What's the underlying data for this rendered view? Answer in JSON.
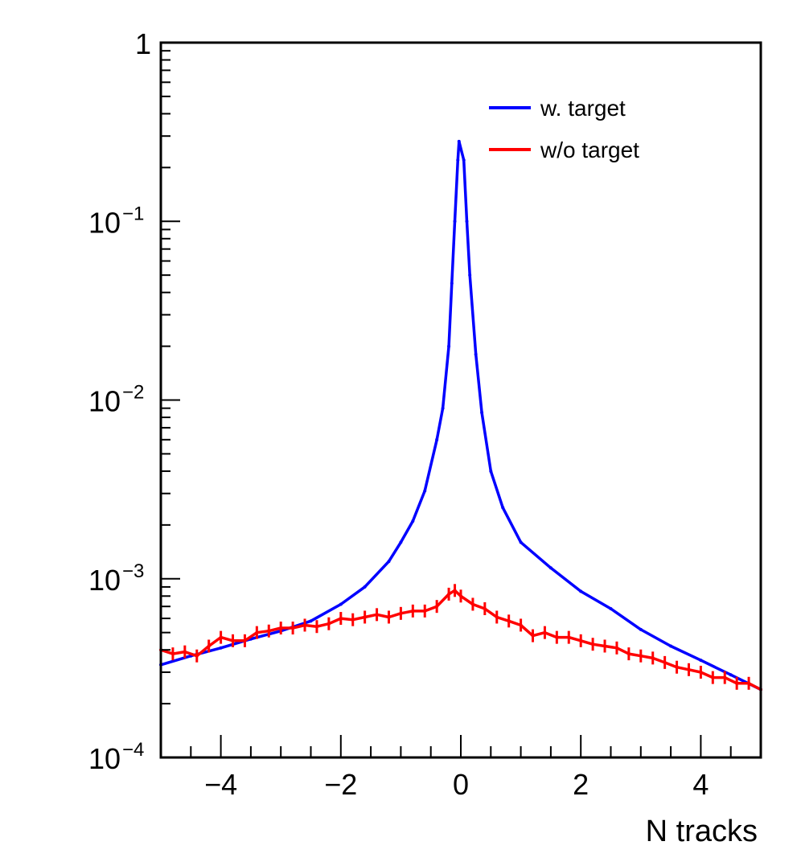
{
  "chart_data": {
    "type": "line",
    "title": "",
    "xlabel": "N tracks",
    "ylabel": "",
    "xlim": [
      -5,
      5
    ],
    "ylim": [
      0.0001,
      1
    ],
    "y_scale": "log",
    "x_ticks": [
      {
        "value": -4,
        "label": "−4"
      },
      {
        "value": -2,
        "label": "−2"
      },
      {
        "value": 0,
        "label": "0"
      },
      {
        "value": 2,
        "label": "2"
      },
      {
        "value": 4,
        "label": "4"
      }
    ],
    "y_ticks": [
      {
        "value": 1,
        "base": "1",
        "exp": ""
      },
      {
        "value": 0.1,
        "base": "10",
        "exp": "−1"
      },
      {
        "value": 0.01,
        "base": "10",
        "exp": "−2"
      },
      {
        "value": 0.001,
        "base": "10",
        "exp": "−3"
      },
      {
        "value": 0.0001,
        "base": "10",
        "exp": "−4"
      }
    ],
    "grid": false,
    "legend": {
      "position": "top-right",
      "entries": [
        "w. target",
        "w/o target"
      ]
    },
    "series": [
      {
        "name": "w. target",
        "color": "#0000ff",
        "points": [
          [
            -5.0,
            0.00033
          ],
          [
            -4.5,
            0.00037
          ],
          [
            -4.0,
            0.00041
          ],
          [
            -3.5,
            0.00046
          ],
          [
            -3.0,
            0.00051
          ],
          [
            -2.5,
            0.00058
          ],
          [
            -2.0,
            0.00072
          ],
          [
            -1.6,
            0.0009
          ],
          [
            -1.2,
            0.00125
          ],
          [
            -1.0,
            0.0016
          ],
          [
            -0.8,
            0.0021
          ],
          [
            -0.6,
            0.0031
          ],
          [
            -0.4,
            0.006
          ],
          [
            -0.3,
            0.009
          ],
          [
            -0.2,
            0.02
          ],
          [
            -0.15,
            0.045
          ],
          [
            -0.1,
            0.1
          ],
          [
            -0.05,
            0.22
          ],
          [
            -0.03,
            0.28
          ],
          [
            0.05,
            0.22
          ],
          [
            0.1,
            0.1
          ],
          [
            0.15,
            0.05
          ],
          [
            0.25,
            0.018
          ],
          [
            0.35,
            0.0085
          ],
          [
            0.5,
            0.004
          ],
          [
            0.7,
            0.0025
          ],
          [
            1.0,
            0.0016
          ],
          [
            1.5,
            0.00115
          ],
          [
            2.0,
            0.00085
          ],
          [
            2.5,
            0.00068
          ],
          [
            3.0,
            0.00052
          ],
          [
            3.5,
            0.00042
          ],
          [
            4.0,
            0.00035
          ],
          [
            4.5,
            0.00029
          ],
          [
            5.0,
            0.00024
          ]
        ]
      },
      {
        "name": "w/o target",
        "color": "#ff0000",
        "points": [
          [
            -5.0,
            0.0004
          ],
          [
            -4.8,
            0.00038
          ],
          [
            -4.6,
            0.00039
          ],
          [
            -4.4,
            0.00037
          ],
          [
            -4.2,
            0.00042
          ],
          [
            -4.0,
            0.00047
          ],
          [
            -3.8,
            0.00045
          ],
          [
            -3.6,
            0.00045
          ],
          [
            -3.4,
            0.0005
          ],
          [
            -3.2,
            0.00051
          ],
          [
            -3.0,
            0.00053
          ],
          [
            -2.8,
            0.00053
          ],
          [
            -2.6,
            0.00055
          ],
          [
            -2.4,
            0.00054
          ],
          [
            -2.2,
            0.00056
          ],
          [
            -2.0,
            0.0006
          ],
          [
            -1.8,
            0.00059
          ],
          [
            -1.6,
            0.00061
          ],
          [
            -1.4,
            0.00063
          ],
          [
            -1.2,
            0.00061
          ],
          [
            -1.0,
            0.00064
          ],
          [
            -0.8,
            0.00066
          ],
          [
            -0.6,
            0.00066
          ],
          [
            -0.4,
            0.0007
          ],
          [
            -0.2,
            0.00082
          ],
          [
            -0.1,
            0.00086
          ],
          [
            0.0,
            0.0008
          ],
          [
            0.2,
            0.00072
          ],
          [
            0.4,
            0.00068
          ],
          [
            0.6,
            0.00061
          ],
          [
            0.8,
            0.00058
          ],
          [
            1.0,
            0.00055
          ],
          [
            1.2,
            0.00048
          ],
          [
            1.4,
            0.0005
          ],
          [
            1.6,
            0.00047
          ],
          [
            1.8,
            0.00047
          ],
          [
            2.0,
            0.00045
          ],
          [
            2.2,
            0.00043
          ],
          [
            2.4,
            0.00042
          ],
          [
            2.6,
            0.00041
          ],
          [
            2.8,
            0.00038
          ],
          [
            3.0,
            0.00037
          ],
          [
            3.2,
            0.00036
          ],
          [
            3.4,
            0.00034
          ],
          [
            3.6,
            0.00032
          ],
          [
            3.8,
            0.00031
          ],
          [
            4.0,
            0.0003
          ],
          [
            4.2,
            0.00028
          ],
          [
            4.4,
            0.00028
          ],
          [
            4.6,
            0.00026
          ],
          [
            4.8,
            0.00026
          ],
          [
            5.0,
            0.00024
          ]
        ]
      }
    ]
  }
}
